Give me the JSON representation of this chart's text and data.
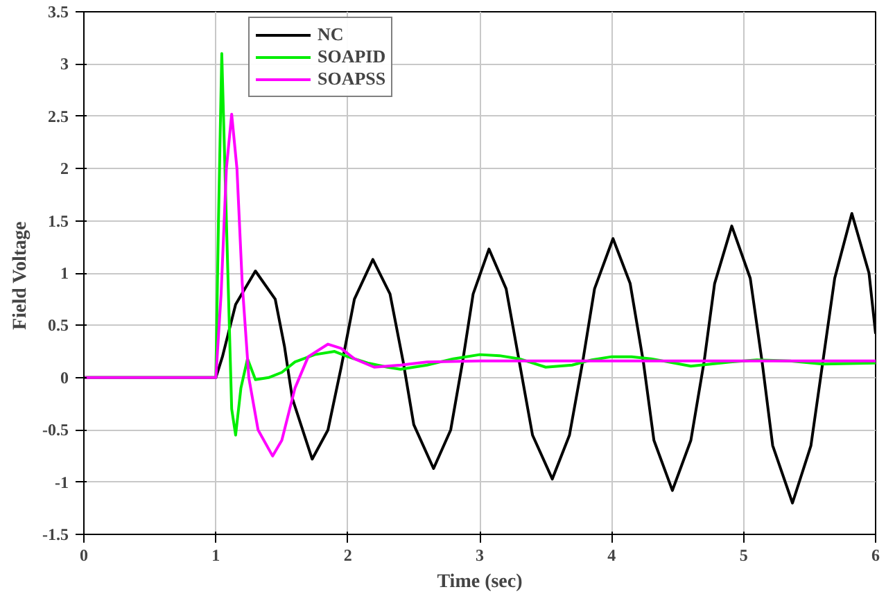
{
  "chart_data": {
    "type": "line",
    "xlabel": "Time (sec)",
    "ylabel": "Field  Voltage",
    "xlim": [
      0,
      6
    ],
    "ylim": [
      -1.5,
      3.5
    ],
    "xticks": [
      0,
      1,
      2,
      3,
      4,
      5,
      6
    ],
    "yticks": [
      -1.5,
      -1,
      -0.5,
      0,
      0.5,
      1,
      1.5,
      2,
      2.5,
      3,
      3.5
    ],
    "grid": true,
    "legend": "top left",
    "line_style": "solid",
    "series": [
      {
        "name": "NC",
        "color": "#000000",
        "x": [
          0,
          1,
          1.05,
          1.15,
          1.3,
          1.45,
          1.52,
          1.58,
          1.73,
          1.85,
          1.95,
          2.05,
          2.19,
          2.32,
          2.42,
          2.5,
          2.65,
          2.78,
          2.87,
          2.95,
          3.07,
          3.2,
          3.3,
          3.4,
          3.55,
          3.68,
          3.78,
          3.87,
          4.01,
          4.14,
          4.24,
          4.32,
          4.46,
          4.6,
          4.7,
          4.78,
          4.91,
          5.05,
          5.14,
          5.22,
          5.37,
          5.51,
          5.6,
          5.69,
          5.82,
          5.95,
          6
        ],
        "values": [
          0,
          0,
          0.2,
          0.7,
          1.02,
          0.75,
          0.3,
          -0.2,
          -0.78,
          -0.5,
          0.1,
          0.75,
          1.13,
          0.8,
          0.15,
          -0.45,
          -0.87,
          -0.5,
          0.15,
          0.8,
          1.23,
          0.85,
          0.15,
          -0.55,
          -0.97,
          -0.55,
          0.15,
          0.85,
          1.33,
          0.9,
          0.15,
          -0.6,
          -1.08,
          -0.6,
          0.15,
          0.9,
          1.45,
          0.95,
          0.15,
          -0.65,
          -1.2,
          -0.65,
          0.15,
          0.95,
          1.57,
          1.0,
          0.42
        ]
      },
      {
        "name": "SOAPID",
        "color": "#00ee00",
        "x": [
          0,
          1,
          1.02,
          1.045,
          1.08,
          1.12,
          1.15,
          1.19,
          1.24,
          1.3,
          1.4,
          1.5,
          1.6,
          1.75,
          1.9,
          2.0,
          2.15,
          2.3,
          2.4,
          2.6,
          2.8,
          3.0,
          3.15,
          3.3,
          3.5,
          3.7,
          3.85,
          4.0,
          4.15,
          4.3,
          4.6,
          4.9,
          5.1,
          5.35,
          5.6,
          6
        ],
        "values": [
          0,
          0,
          1.5,
          3.1,
          1.5,
          -0.3,
          -0.55,
          -0.1,
          0.18,
          -0.02,
          0.0,
          0.05,
          0.15,
          0.22,
          0.25,
          0.2,
          0.14,
          0.1,
          0.08,
          0.12,
          0.18,
          0.22,
          0.21,
          0.18,
          0.1,
          0.12,
          0.17,
          0.2,
          0.2,
          0.18,
          0.11,
          0.15,
          0.17,
          0.16,
          0.13,
          0.14
        ]
      },
      {
        "name": "SOAPSS",
        "color": "#ff00ff",
        "x": [
          0,
          1,
          1.04,
          1.08,
          1.12,
          1.16,
          1.2,
          1.25,
          1.32,
          1.43,
          1.5,
          1.6,
          1.7,
          1.85,
          1.95,
          2.05,
          2.2,
          2.4,
          2.6,
          3.0,
          4.0,
          5.0,
          6
        ],
        "values": [
          0,
          0,
          0.8,
          2.0,
          2.52,
          2.0,
          0.9,
          0.0,
          -0.5,
          -0.75,
          -0.6,
          -0.1,
          0.2,
          0.32,
          0.28,
          0.18,
          0.1,
          0.12,
          0.15,
          0.16,
          0.16,
          0.16,
          0.16
        ]
      }
    ]
  }
}
